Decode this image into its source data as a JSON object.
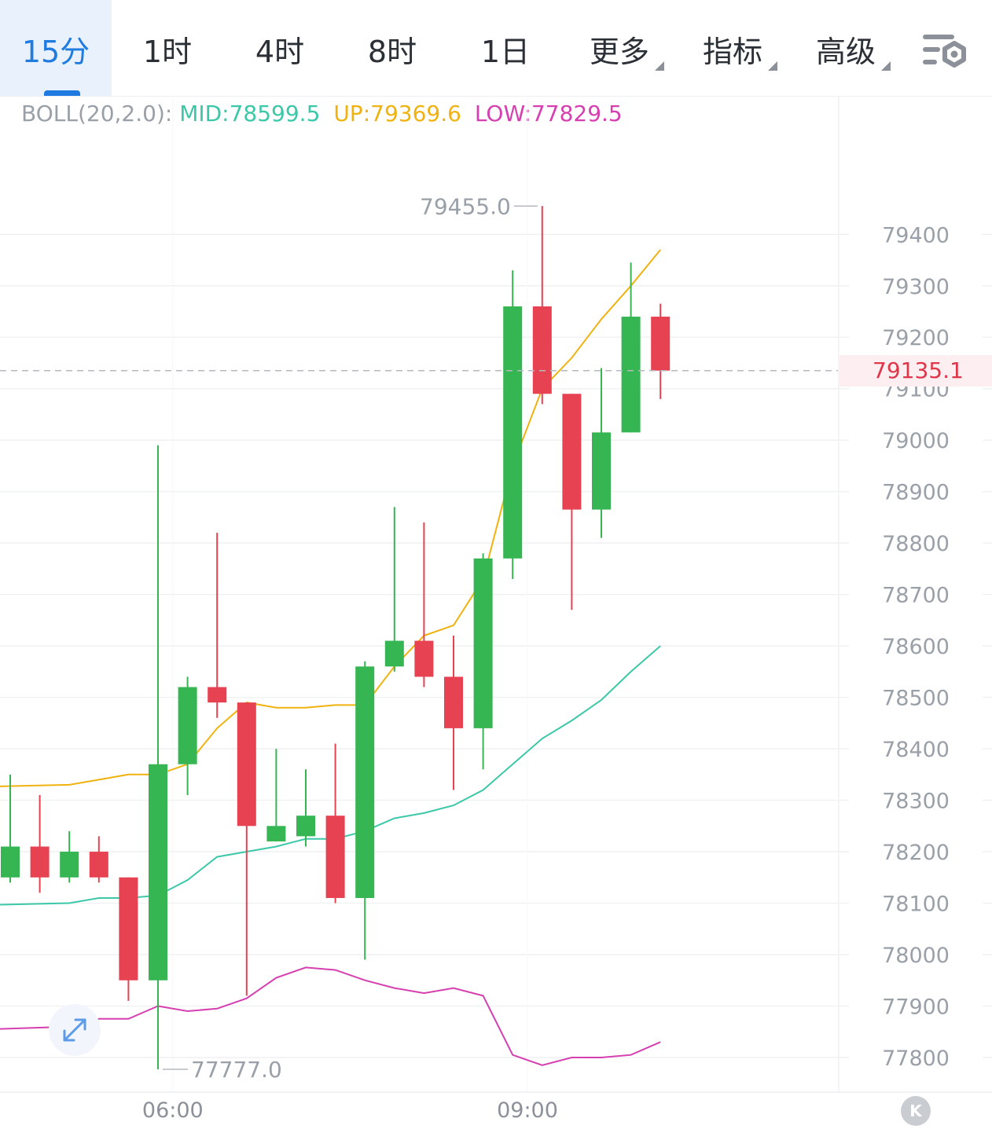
{
  "tabs": [
    {
      "label": "15分",
      "active": true
    },
    {
      "label": "1时"
    },
    {
      "label": "4时"
    },
    {
      "label": "8时"
    },
    {
      "label": "1日"
    },
    {
      "label": "更多",
      "dropdown": true
    },
    {
      "label": "指标",
      "dropdown": true
    },
    {
      "label": "高级",
      "dropdown": true
    }
  ],
  "settings_icon": "chart-settings-icon",
  "indicator": {
    "name": "BOLL(20,2.0):",
    "mid": "MID:78599.5",
    "up": "UP:79369.6",
    "low": "LOW:77829.5"
  },
  "colors": {
    "up_candle": "#35b653",
    "down_candle": "#e64251",
    "mid_line": "#3cc8a8",
    "upper_band": "#f0b20f",
    "lower_band": "#d63fb0",
    "active_tab": "#1f7be0",
    "indicator_name": "#9aa0a8"
  },
  "current_price": "79135.1",
  "annotations": {
    "high": "79455.0",
    "low": "77777.0"
  },
  "chart_data": {
    "type": "candlestick",
    "ylim": [
      77740,
      79560
    ],
    "y_ticks": [
      79400,
      79300,
      79200,
      79100,
      79000,
      78900,
      78800,
      78700,
      78600,
      78500,
      78400,
      78300,
      78200,
      78100,
      78000,
      77900,
      77800
    ],
    "x_ticks": [
      {
        "label": "06:00",
        "index": 5.5
      },
      {
        "label": "09:00",
        "index": 17.5
      }
    ],
    "grid": true,
    "candles": [
      {
        "o": 78150,
        "h": 78350,
        "l": 78140,
        "c": 78210
      },
      {
        "o": 78210,
        "h": 78310,
        "l": 78120,
        "c": 78150
      },
      {
        "o": 78150,
        "h": 78240,
        "l": 78140,
        "c": 78200
      },
      {
        "o": 78200,
        "h": 78230,
        "l": 78140,
        "c": 78150
      },
      {
        "o": 78150,
        "h": 78150,
        "l": 77910,
        "c": 77950
      },
      {
        "o": 77950,
        "h": 78990,
        "l": 77777,
        "c": 78370
      },
      {
        "o": 78370,
        "h": 78540,
        "l": 78310,
        "c": 78520
      },
      {
        "o": 78520,
        "h": 78820,
        "l": 78460,
        "c": 78490
      },
      {
        "o": 78490,
        "h": 78490,
        "l": 77920,
        "c": 78250
      },
      {
        "o": 78220,
        "h": 78400,
        "l": 78220,
        "c": 78250
      },
      {
        "o": 78230,
        "h": 78360,
        "l": 78210,
        "c": 78270
      },
      {
        "o": 78270,
        "h": 78410,
        "l": 78100,
        "c": 78110
      },
      {
        "o": 78110,
        "h": 78570,
        "l": 77990,
        "c": 78560
      },
      {
        "o": 78560,
        "h": 78870,
        "l": 78550,
        "c": 78610
      },
      {
        "o": 78610,
        "h": 78840,
        "l": 78520,
        "c": 78540
      },
      {
        "o": 78540,
        "h": 78620,
        "l": 78320,
        "c": 78440
      },
      {
        "o": 78440,
        "h": 78780,
        "l": 78360,
        "c": 78770
      },
      {
        "o": 78770,
        "h": 79330,
        "l": 78730,
        "c": 79260
      },
      {
        "o": 79260,
        "h": 79455,
        "l": 79070,
        "c": 79090
      },
      {
        "o": 79090,
        "h": 79090,
        "l": 78670,
        "c": 78865
      },
      {
        "o": 78865,
        "h": 79140,
        "l": 78810,
        "c": 79015
      },
      {
        "o": 79015,
        "h": 79345,
        "l": 79015,
        "c": 79240
      },
      {
        "o": 79240,
        "h": 79265,
        "l": 79080,
        "c": 79135.1
      }
    ],
    "series": [
      {
        "name": "UP",
        "values": [
          78330,
          78340,
          78350,
          78350,
          78370,
          78440,
          78490,
          78480,
          78480,
          78485,
          78485,
          78560,
          78620,
          78640,
          78730,
          78950,
          79100,
          79160,
          79235,
          79300,
          79370
        ]
      },
      {
        "name": "MID",
        "values": [
          78100,
          78110,
          78110,
          78115,
          78145,
          78190,
          78200,
          78210,
          78225,
          78225,
          78240,
          78265,
          78275,
          78290,
          78320,
          78370,
          78420,
          78455,
          78495,
          78550,
          78600
        ]
      },
      {
        "name": "LOW",
        "values": [
          77860,
          77875,
          77875,
          77900,
          77890,
          77895,
          77915,
          77955,
          77975,
          77970,
          77950,
          77935,
          77925,
          77935,
          77920,
          77805,
          77785,
          77800,
          77800,
          77805,
          77830
        ]
      }
    ],
    "band_start_index": 2
  }
}
